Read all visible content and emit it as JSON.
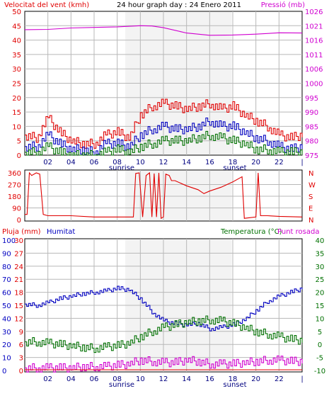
{
  "colors": {
    "wind": "#e00000",
    "gust": "#e00000",
    "pressure": "#d000d0",
    "direction": "#e00000",
    "rain": "#e00000",
    "humidity": "#0000c0",
    "temperature": "#007000",
    "dewpoint": "#d000d0",
    "grid": "#b8b8b8",
    "sunwindow": "#f3f3f3"
  },
  "chart_data": [
    {
      "type": "line",
      "title": "24 hour graph day : 24 Enero 2011",
      "left_axis_label": "Velocitat del vent (kmh)",
      "right_axis_label": "Pressió (mb)",
      "ylim_left": [
        0,
        50
      ],
      "ylim_right": [
        975,
        1026
      ],
      "left_ticks": [
        0,
        5,
        10,
        15,
        20,
        25,
        30,
        35,
        40,
        45,
        50
      ],
      "right_ticks": [
        975,
        980,
        985,
        990,
        995,
        1000,
        1006,
        1011,
        1016,
        1021,
        1026
      ],
      "x_ticks": [
        "02",
        "04",
        "06",
        "08",
        "10",
        "12",
        "14",
        "16",
        "18",
        "20",
        "22",
        "|"
      ],
      "sunrise_label": "sunrise",
      "sunset_label": "sunset",
      "sunrise_hour": 8.7,
      "sunset_hour": 17.9,
      "grid": true,
      "series": [
        {
          "key": "gust",
          "axis": "left",
          "hours": [
            0,
            1,
            2,
            3,
            4,
            5,
            6,
            7,
            8,
            9,
            10,
            11,
            12,
            13,
            14,
            15,
            16,
            17,
            18,
            19,
            20,
            21,
            22,
            23,
            24
          ],
          "values": [
            7,
            6,
            13,
            8,
            5,
            4,
            4,
            7,
            8,
            6,
            14,
            17,
            18,
            17,
            16,
            17,
            18,
            16,
            17,
            14,
            12,
            10,
            7,
            6,
            7
          ]
        },
        {
          "key": "wind",
          "axis": "left",
          "hours": [
            0,
            1,
            2,
            3,
            4,
            5,
            6,
            7,
            8,
            9,
            10,
            11,
            12,
            13,
            14,
            15,
            16,
            17,
            18,
            19,
            20,
            21,
            22,
            23,
            24
          ],
          "values": [
            3,
            3,
            7,
            4,
            2,
            2,
            1,
            4,
            4,
            3,
            7,
            9,
            10,
            9,
            9,
            10,
            12,
            10,
            10,
            8,
            6,
            5,
            3,
            2,
            3
          ]
        },
        {
          "key": "windlow",
          "axis": "left",
          "hours": [
            0,
            1,
            2,
            3,
            4,
            5,
            6,
            7,
            8,
            9,
            10,
            11,
            12,
            13,
            14,
            15,
            16,
            17,
            18,
            19,
            20,
            21,
            22,
            23,
            24
          ],
          "values": [
            1,
            1,
            3,
            1,
            0,
            0,
            0,
            1,
            2,
            1,
            3,
            4,
            5,
            5,
            5,
            6,
            7,
            6,
            5,
            4,
            2,
            2,
            1,
            1,
            1
          ]
        },
        {
          "key": "pressure",
          "axis": "right",
          "hours": [
            0,
            2,
            4,
            6,
            8,
            10,
            11,
            12,
            14,
            16,
            18,
            20,
            22,
            24
          ],
          "values": [
            1019.5,
            1019.6,
            1020.1,
            1020.3,
            1020.5,
            1020.9,
            1020.8,
            1020.2,
            1018.3,
            1017.5,
            1017.6,
            1017.9,
            1018.4,
            1018.3
          ]
        }
      ]
    },
    {
      "type": "line",
      "title": "",
      "ylim": [
        0,
        360
      ],
      "left_ticks": [
        0,
        90,
        180,
        270,
        360
      ],
      "right_ticks": [
        "N",
        "E",
        "S",
        "W",
        "N"
      ],
      "series": [
        {
          "key": "direction",
          "hours": [
            0,
            0.2,
            0.4,
            0.6,
            1.0,
            1.3,
            1.6,
            2,
            4,
            6,
            8,
            8.8,
            9.4,
            9.6,
            9.9,
            10.2,
            10.5,
            10.8,
            11.0,
            11.2,
            11.4,
            11.6,
            11.8,
            12.0,
            12.2,
            12.5,
            12.7,
            13,
            14,
            15,
            15.5,
            16,
            17,
            18,
            18.6,
            18.8,
            19,
            20,
            20.2,
            20.4,
            21,
            22,
            24
          ],
          "values": [
            40,
            40,
            360,
            340,
            360,
            350,
            40,
            30,
            30,
            20,
            20,
            20,
            20,
            355,
            360,
            20,
            340,
            360,
            20,
            355,
            20,
            360,
            10,
            20,
            350,
            340,
            300,
            300,
            260,
            230,
            200,
            220,
            250,
            290,
            320,
            330,
            10,
            20,
            360,
            30,
            30,
            25,
            20
          ]
        }
      ]
    },
    {
      "type": "line",
      "title": "",
      "rain_label": "Pluja (mm)",
      "humidity_label": "Humitat",
      "temperature_label": "Temperatura (°C)",
      "dewpoint_label": "Punt rosada",
      "ylim_humidity": [
        0,
        100
      ],
      "ylim_rain": [
        0,
        30
      ],
      "ylim_temperature": [
        -10,
        40
      ],
      "humidity_ticks": [
        0,
        10,
        20,
        30,
        40,
        50,
        60,
        70,
        80,
        90,
        100
      ],
      "rain_ticks": [
        0,
        3,
        6,
        9,
        12,
        15,
        18,
        21,
        24,
        27,
        30
      ],
      "temperature_ticks": [
        -10,
        -5,
        0,
        5,
        10,
        15,
        20,
        25,
        30,
        35,
        40
      ],
      "series": [
        {
          "key": "humidity",
          "axis": "humidity",
          "hours": [
            0,
            1,
            2,
            3,
            4,
            5,
            6,
            7,
            8,
            9,
            10,
            11,
            12,
            13,
            14,
            15,
            16,
            17,
            18,
            19,
            20,
            21,
            22,
            23,
            24
          ],
          "values": [
            51,
            50,
            52,
            55,
            57,
            59,
            60,
            61,
            63,
            62,
            55,
            45,
            38,
            36,
            35,
            36,
            32,
            33,
            35,
            39,
            46,
            53,
            57,
            60,
            63
          ]
        },
        {
          "key": "temperature",
          "axis": "temperature",
          "hours": [
            0,
            1,
            2,
            3,
            4,
            5,
            6,
            7,
            8,
            9,
            10,
            11,
            12,
            13,
            14,
            15,
            16,
            17,
            18,
            19,
            20,
            21,
            22,
            23,
            24
          ],
          "values": [
            1,
            1,
            0.5,
            0,
            -0.5,
            -1,
            -1.5,
            -1,
            -0.5,
            0.5,
            3,
            5,
            6.5,
            7.5,
            8.5,
            9,
            9.5,
            9,
            8,
            6.5,
            5,
            4,
            3,
            2,
            1.5
          ]
        },
        {
          "key": "dewpoint",
          "axis": "temperature",
          "hours": [
            0,
            1,
            2,
            3,
            4,
            5,
            6,
            7,
            8,
            9,
            10,
            11,
            12,
            13,
            14,
            15,
            16,
            17,
            18,
            19,
            20,
            21,
            22,
            23,
            24
          ],
          "values": [
            -9,
            -9,
            -9,
            -9,
            -9,
            -8.5,
            -8.5,
            -8.5,
            -8,
            -7.5,
            -6,
            -6.5,
            -7,
            -7,
            -6,
            -6.5,
            -7.5,
            -7.5,
            -7.5,
            -7,
            -6.5,
            -6,
            -6,
            -6.5,
            -6.5
          ]
        },
        {
          "key": "rain",
          "axis": "rain",
          "hours": [
            0,
            24
          ],
          "values": [
            0,
            0
          ]
        }
      ]
    }
  ]
}
